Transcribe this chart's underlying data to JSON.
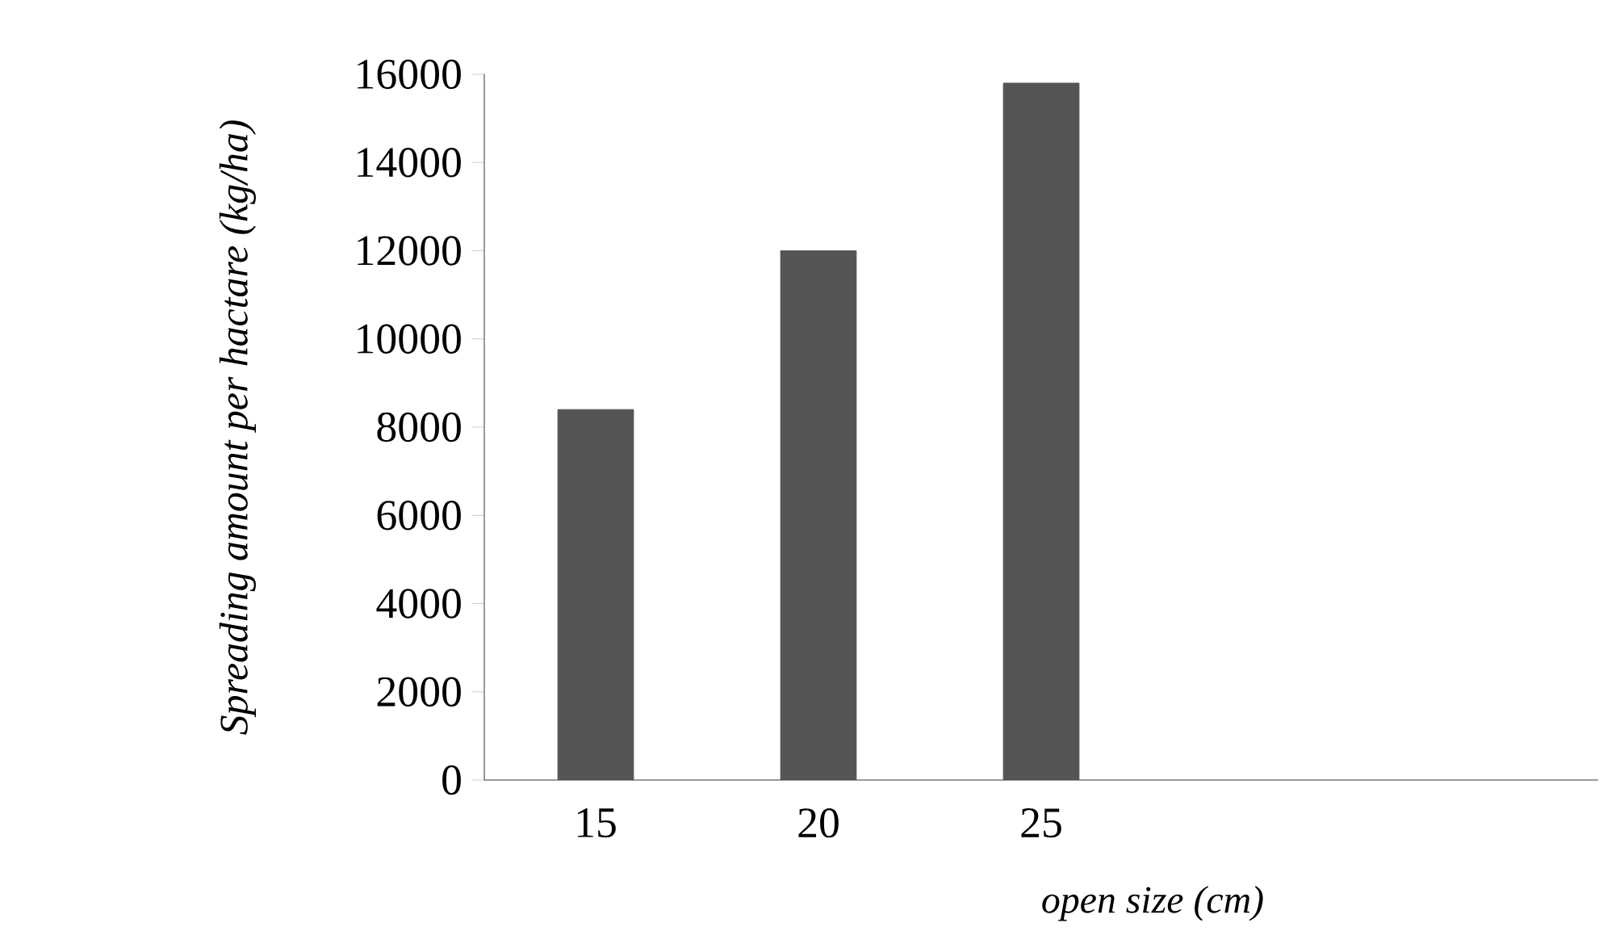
{
  "chart_data": {
    "type": "bar",
    "categories": [
      "15",
      "20",
      "25",
      null,
      null
    ],
    "values": [
      8400,
      12000,
      15800,
      null,
      null
    ],
    "color": "#555555",
    "ylim": [
      0,
      16000
    ],
    "yticks": [
      0,
      2000,
      4000,
      6000,
      8000,
      10000,
      12000,
      14000,
      16000
    ],
    "xlabel": "open size (cm)",
    "ylabel": "Spreading amount per hactare (kg/ha)"
  }
}
